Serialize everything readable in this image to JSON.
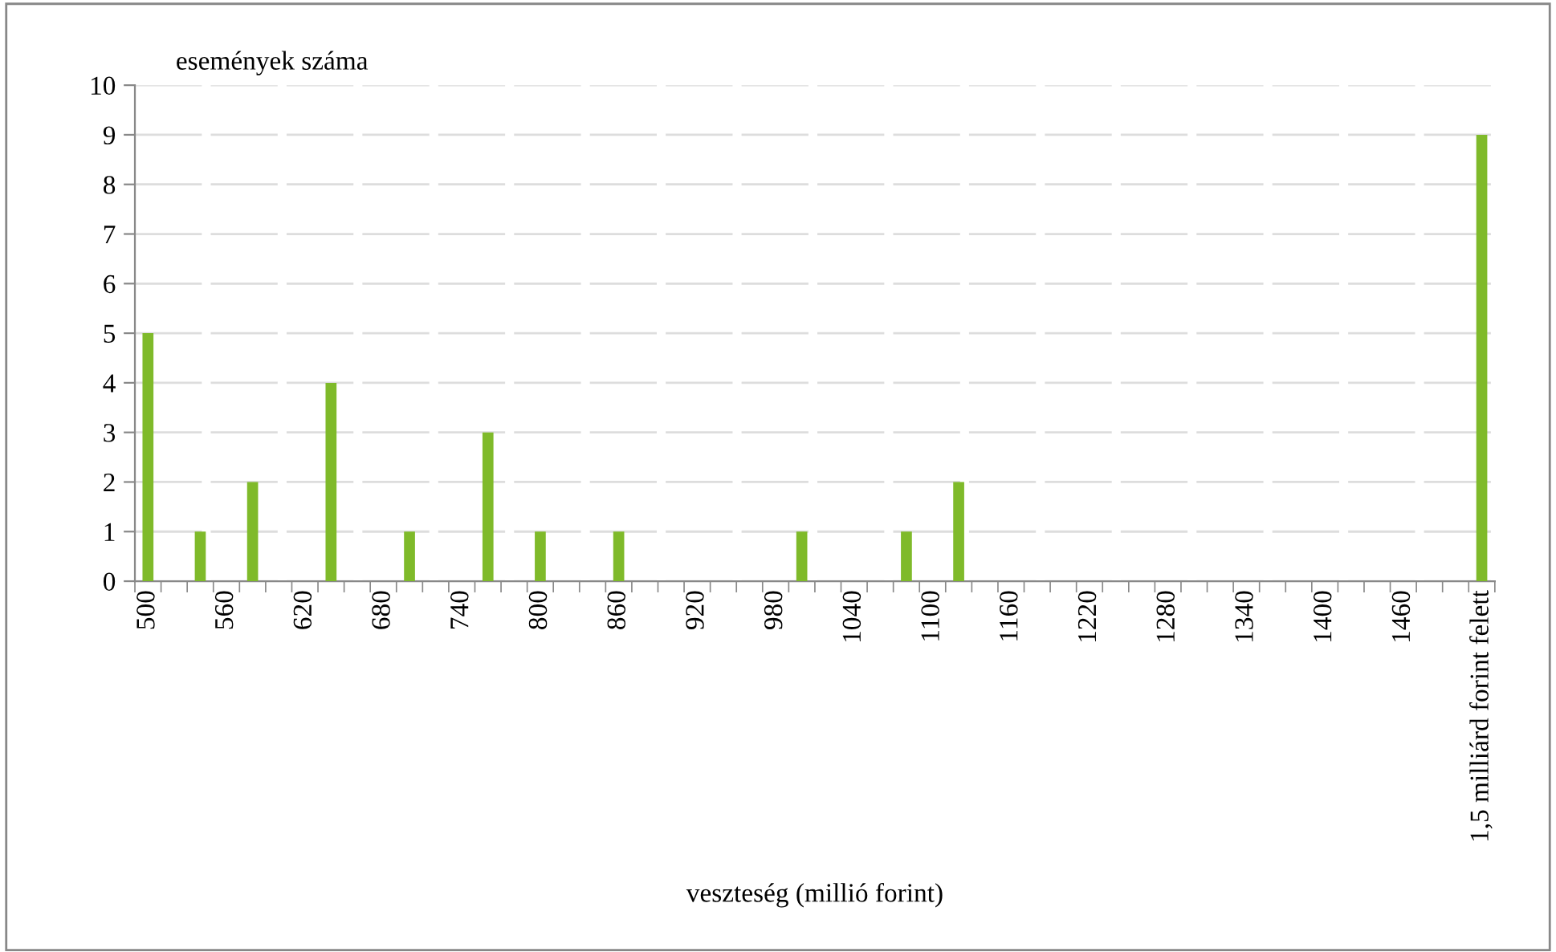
{
  "chart_data": {
    "type": "bar",
    "xlabel": "veszteség (millió forint)",
    "ylabel": "események száma",
    "categories": [
      "500",
      null,
      null,
      "560",
      null,
      null,
      "620",
      null,
      null,
      "680",
      null,
      null,
      "740",
      null,
      null,
      "800",
      null,
      null,
      "860",
      null,
      null,
      "920",
      null,
      null,
      "980",
      null,
      null,
      "1040",
      null,
      null,
      "1100",
      null,
      null,
      "1160",
      null,
      null,
      "1220",
      null,
      null,
      "1280",
      null,
      null,
      "1340",
      null,
      null,
      "1400",
      null,
      null,
      "1460",
      null,
      null,
      "1,5 milliárd forint felett"
    ],
    "values": [
      5,
      0,
      1,
      0,
      2,
      0,
      0,
      4,
      0,
      0,
      1,
      0,
      0,
      3,
      0,
      1,
      0,
      0,
      1,
      0,
      0,
      0,
      0,
      0,
      0,
      1,
      0,
      0,
      0,
      1,
      0,
      2,
      0,
      0,
      0,
      0,
      0,
      0,
      0,
      0,
      0,
      0,
      0,
      0,
      0,
      0,
      0,
      0,
      0,
      0,
      0,
      9
    ],
    "color": "#7fba2a",
    "ylim": [
      0,
      10
    ],
    "yticks": [
      0,
      1,
      2,
      3,
      4,
      5,
      6,
      7,
      8,
      9,
      10
    ],
    "grid": "y",
    "legend": false
  }
}
